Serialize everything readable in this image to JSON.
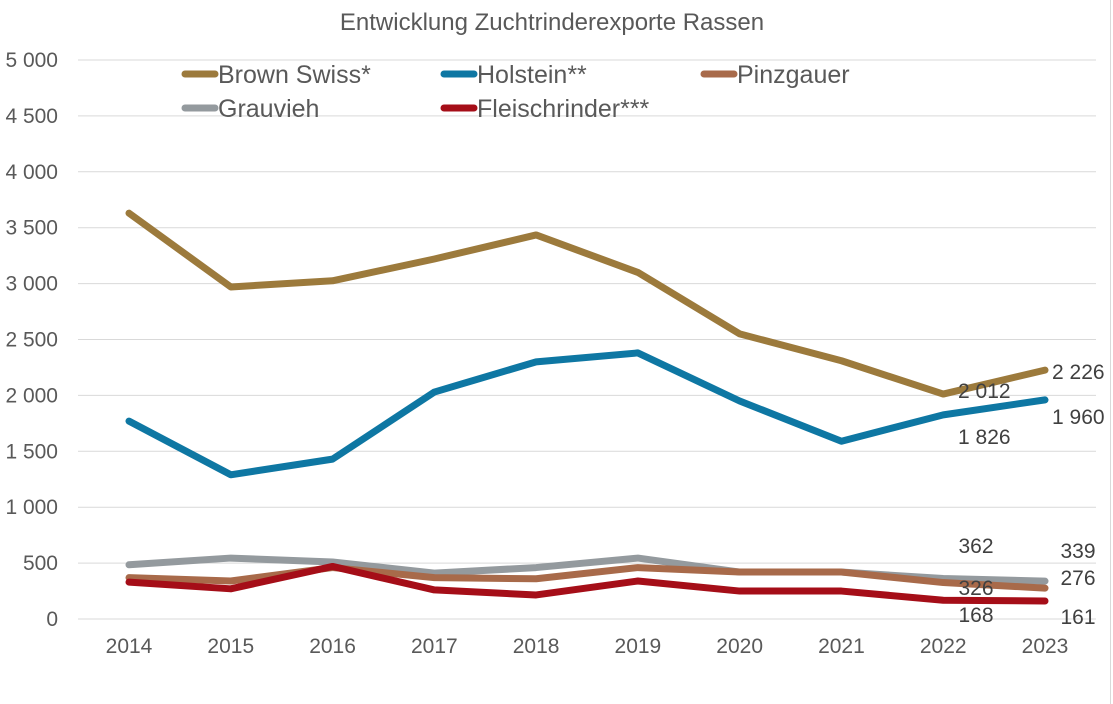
{
  "chart_data": {
    "type": "line",
    "title": "Entwicklung Zuchtrinderexporte Rassen",
    "xlabel": "",
    "ylabel": "",
    "x": [
      "2014",
      "2015",
      "2016",
      "2017",
      "2018",
      "2019",
      "2020",
      "2021",
      "2022",
      "2023"
    ],
    "ylim": [
      0,
      5000
    ],
    "yticks": [
      0,
      500,
      1000,
      1500,
      2000,
      2500,
      3000,
      3500,
      4000,
      4500,
      5000
    ],
    "ytick_labels": [
      "0",
      "500",
      "1 000",
      "1 500",
      "2 000",
      "2 500",
      "3 000",
      "3 500",
      "4 000",
      "4 500",
      "5 000"
    ],
    "grid": true,
    "legend_position": "top",
    "series": [
      {
        "name": "Brown Swiss*",
        "color": "#9C7A3C",
        "values": [
          3630,
          2970,
          3025,
          3220,
          3435,
          3100,
          2550,
          2310,
          2012,
          2226
        ],
        "labels": {
          "2022": "2 012",
          "2023": "2 226"
        }
      },
      {
        "name": "Holstein**",
        "color": "#0E77A3",
        "values": [
          1770,
          1290,
          1430,
          2030,
          2300,
          2380,
          1950,
          1590,
          1826,
          1960
        ],
        "labels": {
          "2022": "1 826",
          "2023": "1 960"
        }
      },
      {
        "name": "Pinzgauer",
        "color": "#A86A4A",
        "values": [
          370,
          340,
          460,
          370,
          360,
          460,
          420,
          420,
          326,
          276
        ],
        "labels": {
          "2022": "326",
          "2023": "276"
        }
      },
      {
        "name": "Grauvieh",
        "color": "#949A9E",
        "values": [
          485,
          545,
          510,
          410,
          460,
          545,
          420,
          420,
          362,
          339
        ],
        "labels": {
          "2022": "362",
          "2023": "339"
        }
      },
      {
        "name": "Fleischrinder***",
        "color": "#A50E18",
        "values": [
          330,
          270,
          470,
          260,
          215,
          340,
          250,
          250,
          168,
          161
        ],
        "labels": {
          "2022": "168",
          "2023": "161"
        }
      }
    ]
  }
}
